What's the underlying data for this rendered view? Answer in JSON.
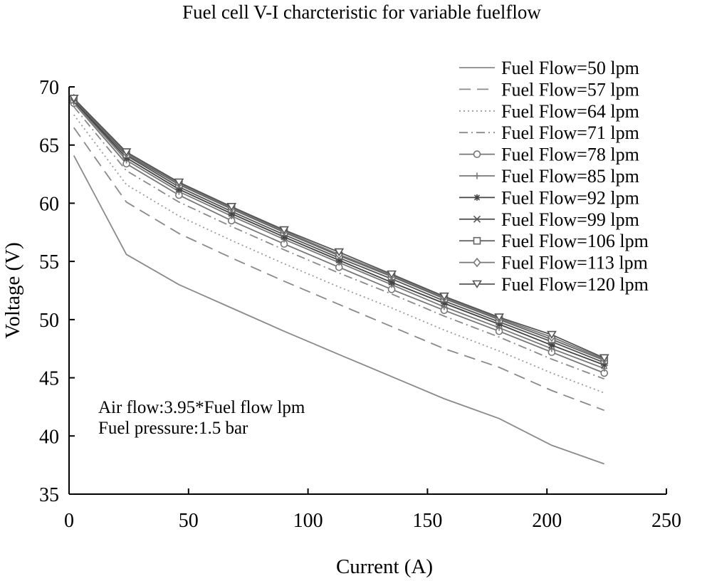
{
  "chart_data": {
    "type": "line",
    "title": "Fuel cell V-I charcteristic for variable fuelflow",
    "xlabel": "Current (A)",
    "ylabel": "Voltage (V)",
    "xlim": [
      0,
      250
    ],
    "ylim": [
      35,
      70
    ],
    "xticks": [
      "0",
      "50",
      "100",
      "150",
      "200",
      "250"
    ],
    "yticks": [
      "35",
      "40",
      "45",
      "50",
      "55",
      "60",
      "65",
      "70"
    ],
    "grid": false,
    "legend_position": "top-right",
    "annotations": [
      "Air flow:3.95*Fuel flow lpm",
      "Fuel pressure:1.5 bar"
    ],
    "x": [
      2,
      24,
      46,
      68,
      90,
      113,
      135,
      157,
      180,
      202,
      224
    ],
    "series": [
      {
        "name": "Fuel Flow=50 lpm",
        "color": "#8a8a8a",
        "dash": "solid",
        "marker": "none",
        "values": [
          64.1,
          55.6,
          53.0,
          51.0,
          49.0,
          47.0,
          45.1,
          43.2,
          41.5,
          39.2,
          37.6
        ]
      },
      {
        "name": "Fuel Flow=57 lpm",
        "color": "#8a8a8a",
        "dash": "dashed",
        "marker": "none",
        "values": [
          66.5,
          60.1,
          57.4,
          55.3,
          53.3,
          51.3,
          49.4,
          47.5,
          45.9,
          43.9,
          42.2
        ]
      },
      {
        "name": "Fuel Flow=64 lpm",
        "color": "#9a9a9a",
        "dash": "dotted",
        "marker": "none",
        "values": [
          67.6,
          61.6,
          58.9,
          56.8,
          54.8,
          52.8,
          51.0,
          49.1,
          47.3,
          45.4,
          43.7
        ]
      },
      {
        "name": "Fuel Flow=71 lpm",
        "color": "#8a8a8a",
        "dash": "dashdot",
        "marker": "none",
        "values": [
          68.3,
          62.8,
          60.1,
          58.0,
          56.0,
          54.0,
          52.2,
          50.3,
          48.5,
          46.6,
          44.9
        ]
      },
      {
        "name": "Fuel Flow=78 lpm",
        "color": "#777777",
        "dash": "solid",
        "marker": "circle",
        "values": [
          68.6,
          63.4,
          60.7,
          58.5,
          56.5,
          54.5,
          52.6,
          50.8,
          49.0,
          47.2,
          45.4
        ]
      },
      {
        "name": "Fuel Flow=85 lpm",
        "color": "#777777",
        "dash": "solid",
        "marker": "plus",
        "values": [
          68.7,
          63.7,
          61.0,
          58.9,
          56.9,
          54.9,
          53.0,
          51.1,
          49.3,
          47.5,
          45.8
        ]
      },
      {
        "name": "Fuel Flow=92 lpm",
        "color": "#444444",
        "dash": "solid",
        "marker": "star",
        "values": [
          68.8,
          63.9,
          61.2,
          59.1,
          57.1,
          55.1,
          53.2,
          51.4,
          49.6,
          47.8,
          46.1
        ]
      },
      {
        "name": "Fuel Flow=99 lpm",
        "color": "#555555",
        "dash": "solid",
        "marker": "x",
        "values": [
          68.9,
          64.1,
          61.4,
          59.3,
          57.3,
          55.3,
          53.5,
          51.6,
          49.8,
          48.1,
          46.3
        ]
      },
      {
        "name": "Fuel Flow=106 lpm",
        "color": "#666666",
        "dash": "solid",
        "marker": "square",
        "values": [
          68.9,
          64.2,
          61.6,
          59.5,
          57.5,
          55.5,
          53.7,
          51.8,
          50.0,
          48.3,
          46.5
        ]
      },
      {
        "name": "Fuel Flow=113 lpm",
        "color": "#777777",
        "dash": "solid",
        "marker": "diamond",
        "values": [
          69.0,
          64.3,
          61.7,
          59.6,
          57.6,
          55.6,
          53.8,
          51.9,
          50.1,
          48.5,
          46.6
        ]
      },
      {
        "name": "Fuel Flow=120 lpm",
        "color": "#555555",
        "dash": "solid",
        "marker": "triangle-down",
        "values": [
          69.0,
          64.4,
          61.8,
          59.7,
          57.7,
          55.8,
          53.9,
          52.0,
          50.2,
          48.7,
          46.7
        ]
      }
    ]
  }
}
